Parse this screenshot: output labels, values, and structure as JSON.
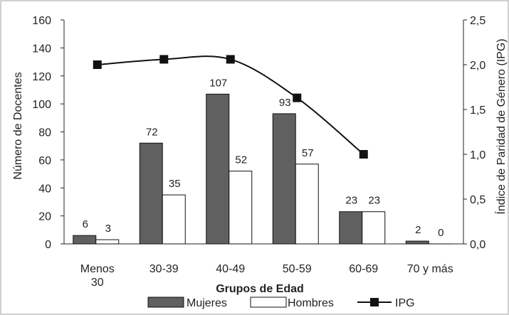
{
  "chart_data": {
    "type": "bar",
    "categories": [
      [
        "Menos",
        "30"
      ],
      [
        "30-39"
      ],
      [
        "40-49"
      ],
      [
        "50-59"
      ],
      [
        "60-69"
      ],
      [
        "70 y más"
      ]
    ],
    "series": [
      {
        "name": "Mujeres",
        "kind": "bar",
        "color": "#606060",
        "values": [
          6,
          72,
          107,
          93,
          23,
          2
        ]
      },
      {
        "name": "Hombres",
        "kind": "bar",
        "color": "#ffffff",
        "values": [
          3,
          35,
          52,
          57,
          23,
          0
        ]
      },
      {
        "name": "IPG",
        "kind": "line",
        "axis": "right",
        "color": "#111111",
        "values": [
          2.0,
          2.06,
          2.06,
          1.63,
          1.0,
          null
        ]
      }
    ],
    "xlabel": "Grupos de Edad",
    "ylabel": "Número de Docentes",
    "y2label": "Índice de Paridad de Género (IPG)",
    "ylim": [
      0,
      160
    ],
    "y2lim": [
      0,
      2.5
    ],
    "yticks": [
      "0",
      "20",
      "40",
      "60",
      "80",
      "100",
      "120",
      "140",
      "160"
    ],
    "y2ticks": [
      "0,0",
      "0,5",
      "1,0",
      "1,5",
      "2,0",
      "2,5"
    ],
    "grid": false,
    "legend_position": "bottom"
  }
}
